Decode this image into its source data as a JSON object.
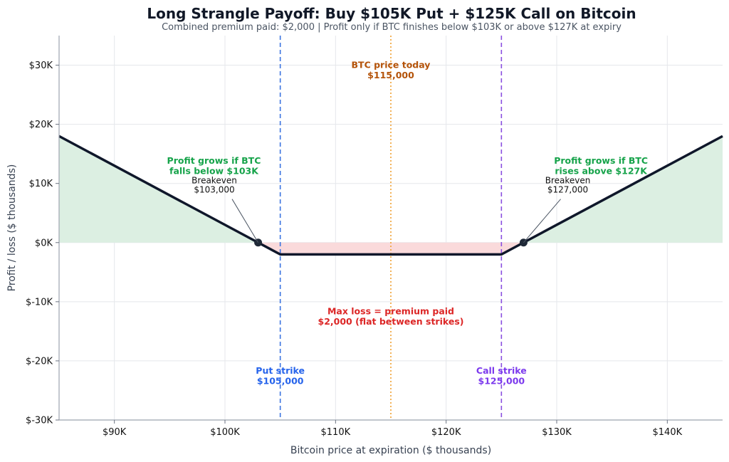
{
  "chart_data": {
    "type": "line",
    "title": "Long Strangle Payoff: Buy $105K Put + $125K Call on Bitcoin",
    "subtitle": "Combined premium paid: $2,000  |  Profit only if BTC finishes below $103K or above $127K at expiry",
    "xlabel": "Bitcoin price at expiration ($ thousands)",
    "ylabel": "Profit / loss ($ thousands)",
    "xlim": [
      85,
      145
    ],
    "ylim": [
      -30,
      35
    ],
    "grid": true,
    "x_ticks": [
      90,
      100,
      110,
      120,
      130,
      140
    ],
    "x_tick_labels": [
      "$90K",
      "$100K",
      "$110K",
      "$120K",
      "$130K",
      "$140K"
    ],
    "y_ticks": [
      -30,
      -20,
      -10,
      0,
      10,
      20,
      30
    ],
    "y_tick_labels": [
      "$-30K",
      "$-20K",
      "$-10K",
      "$0K",
      "$10K",
      "$20K",
      "$30K"
    ],
    "series": [
      {
        "x": [
          85,
          103,
          105,
          125,
          127,
          145
        ],
        "y": [
          18,
          0,
          -2,
          -2,
          0,
          18
        ]
      }
    ],
    "profit_fill_color": "#dcefe2",
    "loss_fill_color": "#fadadb",
    "line_color": "#0f172a",
    "breakevens": [
      {
        "x": 103,
        "y": 0,
        "label": "Breakeven",
        "value": "$103,000"
      },
      {
        "x": 127,
        "y": 0,
        "label": "Breakeven",
        "value": "$127,000"
      }
    ],
    "vlines": [
      {
        "x": 105,
        "style": "dashed",
        "color": "#3b74e0",
        "label": "Put strike",
        "value": "$105,000",
        "label_color": "#2563eb"
      },
      {
        "x": 125,
        "style": "dashed",
        "color": "#8a4fe0",
        "label": "Call strike",
        "value": "$125,000",
        "label_color": "#7c3aed"
      },
      {
        "x": 115,
        "style": "dotted",
        "color": "#f0a030",
        "label": "BTC price today",
        "value": "$115,000",
        "label_color": "#b45309"
      }
    ],
    "annotations": [
      {
        "text": "Profit grows if BTC",
        "text2": "falls below $103K",
        "x": 99,
        "y": 13,
        "color": "#16a34a"
      },
      {
        "text": "Profit grows if BTC",
        "text2": "rises above $127K",
        "x": 134,
        "y": 13,
        "color": "#16a34a"
      },
      {
        "text": "Max loss = premium paid",
        "text2": "$2,000 (flat between strikes)",
        "x": 115,
        "y": -12.5,
        "color": "#dc2626"
      }
    ]
  }
}
